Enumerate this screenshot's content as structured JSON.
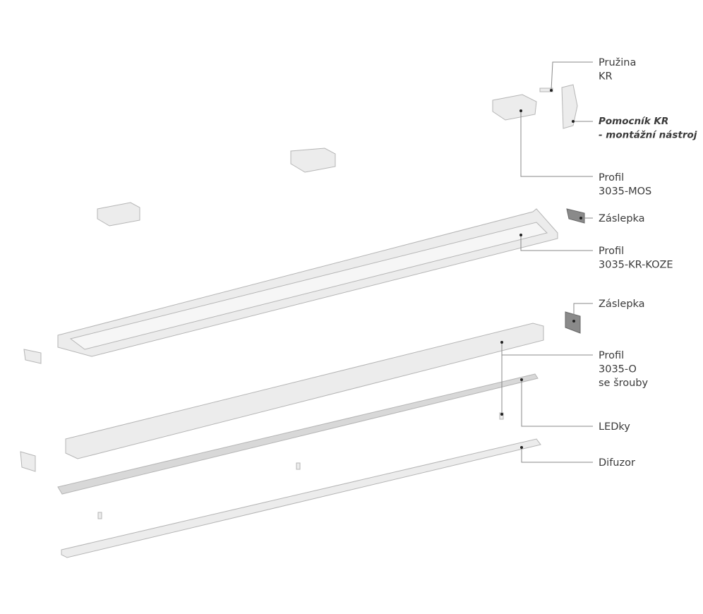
{
  "labels": [
    {
      "lines": [
        "Pružina",
        "KR"
      ]
    },
    {
      "lines": [
        "Pomocník KR",
        "- montážní nástroj"
      ]
    },
    {
      "lines": [
        "Profil",
        "3035-MOS"
      ]
    },
    {
      "lines": [
        "Záslepka"
      ]
    },
    {
      "lines": [
        "Profil",
        "3035-KR-KOZE"
      ]
    },
    {
      "lines": [
        "Záslepka"
      ]
    },
    {
      "lines": [
        "Profil",
        "3035-O",
        "se šrouby"
      ]
    },
    {
      "lines": [
        "LEDky"
      ]
    },
    {
      "lines": [
        "Difuzor"
      ]
    }
  ]
}
